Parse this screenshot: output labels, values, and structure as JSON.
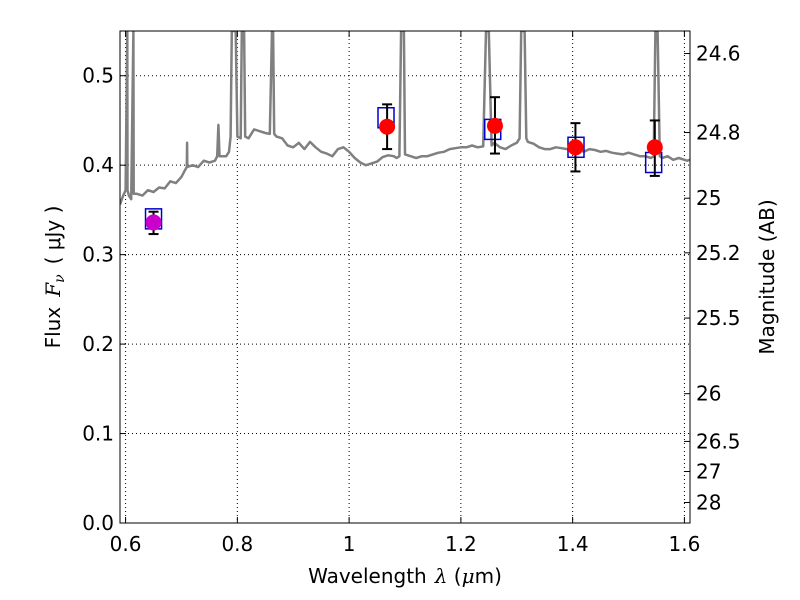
{
  "chart_data": {
    "type": "line",
    "xlabel_prefix": "Wavelength",
    "xlabel_symbol": "λ",
    "xlabel_unit_open": " (",
    "xlabel_unit_mu": "μ",
    "xlabel_unit_rest": "m)",
    "ylabel_prefix": "Flux",
    "ylabel_symbol": "F",
    "ylabel_subscript": "ν",
    "ylabel_unit": "( μJy )",
    "y2label": "Magnitude (AB)",
    "xlim": [
      0.59,
      1.61
    ],
    "ylim": [
      0.0,
      0.55
    ],
    "grid": true,
    "x_ticks": [
      {
        "value": 0.6,
        "label": "0.6"
      },
      {
        "value": 0.8,
        "label": "0.8"
      },
      {
        "value": 1.0,
        "label": "1"
      },
      {
        "value": 1.2,
        "label": "1.2"
      },
      {
        "value": 1.4,
        "label": "1.4"
      },
      {
        "value": 1.6,
        "label": "1.6"
      }
    ],
    "y_ticks": [
      {
        "value": 0.0,
        "label": "0.0"
      },
      {
        "value": 0.1,
        "label": "0.1"
      },
      {
        "value": 0.2,
        "label": "0.2"
      },
      {
        "value": 0.3,
        "label": "0.3"
      },
      {
        "value": 0.4,
        "label": "0.4"
      },
      {
        "value": 0.5,
        "label": "0.5"
      }
    ],
    "y2_ticks": [
      {
        "value": 24.6,
        "label": "24.6"
      },
      {
        "value": 24.8,
        "label": "24.8"
      },
      {
        "value": 25.0,
        "label": "25"
      },
      {
        "value": 25.2,
        "label": "25.2"
      },
      {
        "value": 25.5,
        "label": "25.5"
      },
      {
        "value": 26.0,
        "label": "26"
      },
      {
        "value": 26.5,
        "label": "26.5"
      },
      {
        "value": 27.0,
        "label": "27"
      },
      {
        "value": 28.0,
        "label": "28"
      }
    ],
    "series": [
      {
        "kind": "spectrum",
        "color": "#808080",
        "points": [
          [
            0.59,
            0.356
          ],
          [
            0.595,
            0.365
          ],
          [
            0.6,
            0.372
          ],
          [
            0.603,
            0.55
          ],
          [
            0.6035,
            0.372
          ],
          [
            0.606,
            0.366
          ],
          [
            0.61,
            0.362
          ],
          [
            0.614,
            0.55
          ],
          [
            0.6145,
            0.368
          ],
          [
            0.62,
            0.368
          ],
          [
            0.63,
            0.366
          ],
          [
            0.64,
            0.372
          ],
          [
            0.65,
            0.37
          ],
          [
            0.66,
            0.375
          ],
          [
            0.67,
            0.374
          ],
          [
            0.68,
            0.382
          ],
          [
            0.69,
            0.38
          ],
          [
            0.7,
            0.387
          ],
          [
            0.705,
            0.393
          ],
          [
            0.7095,
            0.398
          ],
          [
            0.71,
            0.425
          ],
          [
            0.7105,
            0.398
          ],
          [
            0.72,
            0.4
          ],
          [
            0.73,
            0.398
          ],
          [
            0.74,
            0.405
          ],
          [
            0.75,
            0.403
          ],
          [
            0.76,
            0.405
          ],
          [
            0.764,
            0.41
          ],
          [
            0.766,
            0.445
          ],
          [
            0.768,
            0.41
          ],
          [
            0.78,
            0.41
          ],
          [
            0.785,
            0.415
          ],
          [
            0.788,
            0.432
          ],
          [
            0.79,
            0.55
          ],
          [
            0.797,
            0.55
          ],
          [
            0.8,
            0.432
          ],
          [
            0.806,
            0.43
          ],
          [
            0.808,
            0.55
          ],
          [
            0.812,
            0.55
          ],
          [
            0.814,
            0.432
          ],
          [
            0.82,
            0.43
          ],
          [
            0.83,
            0.44
          ],
          [
            0.84,
            0.438
          ],
          [
            0.85,
            0.436
          ],
          [
            0.858,
            0.435
          ],
          [
            0.862,
            0.55
          ],
          [
            0.864,
            0.55
          ],
          [
            0.866,
            0.435
          ],
          [
            0.87,
            0.432
          ],
          [
            0.88,
            0.43
          ],
          [
            0.89,
            0.422
          ],
          [
            0.9,
            0.42
          ],
          [
            0.91,
            0.425
          ],
          [
            0.92,
            0.418
          ],
          [
            0.93,
            0.426
          ],
          [
            0.94,
            0.42
          ],
          [
            0.95,
            0.415
          ],
          [
            0.96,
            0.413
          ],
          [
            0.97,
            0.41
          ],
          [
            0.98,
            0.418
          ],
          [
            0.99,
            0.42
          ],
          [
            1.0,
            0.415
          ],
          [
            1.01,
            0.408
          ],
          [
            1.02,
            0.403
          ],
          [
            1.03,
            0.4
          ],
          [
            1.04,
            0.402
          ],
          [
            1.05,
            0.404
          ],
          [
            1.06,
            0.409
          ],
          [
            1.07,
            0.411
          ],
          [
            1.08,
            0.41
          ],
          [
            1.085,
            0.408
          ],
          [
            1.09,
            0.41
          ],
          [
            1.093,
            0.55
          ],
          [
            1.098,
            0.55
          ],
          [
            1.1,
            0.412
          ],
          [
            1.11,
            0.41
          ],
          [
            1.12,
            0.408
          ],
          [
            1.13,
            0.41
          ],
          [
            1.14,
            0.41
          ],
          [
            1.15,
            0.412
          ],
          [
            1.16,
            0.414
          ],
          [
            1.17,
            0.415
          ],
          [
            1.18,
            0.418
          ],
          [
            1.19,
            0.419
          ],
          [
            1.2,
            0.42
          ],
          [
            1.21,
            0.42
          ],
          [
            1.22,
            0.422
          ],
          [
            1.23,
            0.42
          ],
          [
            1.24,
            0.421
          ],
          [
            1.245,
            0.55
          ],
          [
            1.25,
            0.55
          ],
          [
            1.255,
            0.422
          ],
          [
            1.26,
            0.425
          ],
          [
            1.27,
            0.42
          ],
          [
            1.28,
            0.418
          ],
          [
            1.29,
            0.422
          ],
          [
            1.3,
            0.425
          ],
          [
            1.305,
            0.43
          ],
          [
            1.308,
            0.55
          ],
          [
            1.314,
            0.55
          ],
          [
            1.317,
            0.43
          ],
          [
            1.32,
            0.426
          ],
          [
            1.33,
            0.424
          ],
          [
            1.34,
            0.42
          ],
          [
            1.35,
            0.418
          ],
          [
            1.36,
            0.418
          ],
          [
            1.37,
            0.42
          ],
          [
            1.38,
            0.419
          ],
          [
            1.39,
            0.418
          ],
          [
            1.4,
            0.418
          ],
          [
            1.41,
            0.418
          ],
          [
            1.42,
            0.415
          ],
          [
            1.43,
            0.418
          ],
          [
            1.44,
            0.417
          ],
          [
            1.45,
            0.415
          ],
          [
            1.46,
            0.416
          ],
          [
            1.47,
            0.414
          ],
          [
            1.48,
            0.413
          ],
          [
            1.49,
            0.412
          ],
          [
            1.5,
            0.414
          ],
          [
            1.51,
            0.412
          ],
          [
            1.52,
            0.41
          ],
          [
            1.53,
            0.41
          ],
          [
            1.54,
            0.408
          ],
          [
            1.545,
            0.41
          ],
          [
            1.548,
            0.55
          ],
          [
            1.552,
            0.55
          ],
          [
            1.556,
            0.41
          ],
          [
            1.56,
            0.408
          ],
          [
            1.57,
            0.41
          ],
          [
            1.58,
            0.406
          ],
          [
            1.59,
            0.408
          ],
          [
            1.6,
            0.406
          ],
          [
            1.605,
            0.405
          ],
          [
            1.61,
            0.406
          ]
        ]
      }
    ],
    "boxes": [
      {
        "x": 0.65,
        "y": 0.34,
        "color": "#0000cc"
      },
      {
        "x": 1.066,
        "y": 0.453,
        "color": "#0000cc"
      },
      {
        "x": 1.257,
        "y": 0.44,
        "color": "#0000cc"
      },
      {
        "x": 1.406,
        "y": 0.42,
        "color": "#0000cc"
      },
      {
        "x": 1.545,
        "y": 0.403,
        "color": "#0000cc"
      }
    ],
    "points": [
      {
        "x": 0.65,
        "y": 0.336,
        "err_low": 0.013,
        "err_high": 0.012,
        "color": "#cc00cc"
      },
      {
        "x": 1.068,
        "y": 0.443,
        "err_low": 0.025,
        "err_high": 0.025,
        "color": "#ff0000"
      },
      {
        "x": 1.261,
        "y": 0.444,
        "err_low": 0.031,
        "err_high": 0.032,
        "color": "#ff0000"
      },
      {
        "x": 1.405,
        "y": 0.42,
        "err_low": 0.027,
        "err_high": 0.027,
        "color": "#ff0000"
      },
      {
        "x": 1.547,
        "y": 0.42,
        "err_low": 0.032,
        "err_high": 0.03,
        "color": "#ff0000"
      }
    ],
    "colors": {
      "spectrum": "#808080",
      "box": "#0000cc",
      "point_red": "#ff0000",
      "point_magenta": "#cc00cc",
      "grid": "#000000"
    }
  }
}
